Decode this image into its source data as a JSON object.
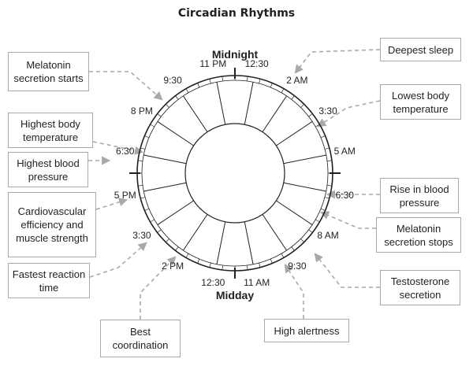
{
  "title": "Circadian Rhythms",
  "top_label": "Midnight",
  "bottom_label": "Midday",
  "time_labels": [
    "12:30",
    "2 AM",
    "3:30",
    "5 AM",
    "6:30",
    "8 AM",
    "9:30",
    "11 AM",
    "12:30",
    "2 PM",
    "3:30",
    "5 PM",
    "6:30",
    "8 PM",
    "9:30",
    "11 PM"
  ],
  "events": {
    "melatonin_starts": "Melatonin secretion starts",
    "highest_temp": "Highest body temperature",
    "highest_bp": "Highest blood pressure",
    "cardio": "Cardiovascular efficiency and muscle strength",
    "fastest_reaction": "Fastest reaction time",
    "best_coordination": "Best coordination",
    "high_alertness": "High alertness",
    "deepest_sleep": "Deepest sleep",
    "lowest_temp": "Lowest body temperature",
    "rise_bp": "Rise in blood pressure",
    "melatonin_stops": "Melatonin secretion stops",
    "testosterone": "Testosterone secretion"
  },
  "colors": {
    "line": "#231f20",
    "leader": "#a7a9ac",
    "box_border": "#a7a9ac"
  }
}
